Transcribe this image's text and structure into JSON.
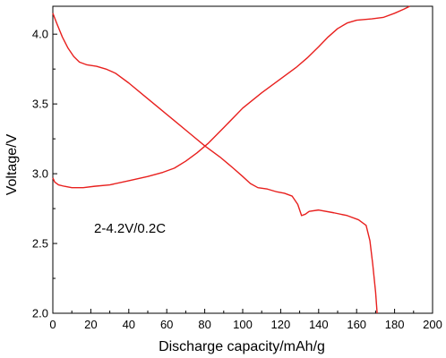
{
  "chart_data": {
    "type": "line",
    "title": "",
    "xlabel": "Discharge capacity/mAh/g",
    "ylabel": "Voltage/V",
    "xlim": [
      0,
      200
    ],
    "ylim": [
      2.0,
      4.2
    ],
    "xticks": [
      0,
      20,
      40,
      60,
      80,
      100,
      120,
      140,
      160,
      180,
      200
    ],
    "xtick_labels": [
      "0",
      "20",
      "40",
      "60",
      "80",
      "100",
      "120",
      "140",
      "160",
      "180",
      "200"
    ],
    "yticks": [
      2.0,
      2.5,
      3.0,
      3.5,
      4.0
    ],
    "ytick_labels": [
      "2.0",
      "2.5",
      "3.0",
      "3.5",
      "4.0"
    ],
    "grid": false,
    "line_color": "#e8201e",
    "annotation": "2-4.2V/0.2C",
    "series": [
      {
        "points": [
          [
            0,
            4.15
          ],
          [
            2,
            4.08
          ],
          [
            5,
            3.98
          ],
          [
            8,
            3.9
          ],
          [
            11,
            3.84
          ],
          [
            14,
            3.8
          ],
          [
            18,
            3.78
          ],
          [
            23,
            3.77
          ],
          [
            28,
            3.75
          ],
          [
            33,
            3.72
          ],
          [
            40,
            3.65
          ],
          [
            48,
            3.56
          ],
          [
            56,
            3.47
          ],
          [
            64,
            3.38
          ],
          [
            72,
            3.29
          ],
          [
            80,
            3.2
          ],
          [
            88,
            3.12
          ],
          [
            95,
            3.04
          ],
          [
            100,
            2.98
          ],
          [
            104,
            2.93
          ],
          [
            108,
            2.9
          ],
          [
            113,
            2.89
          ],
          [
            118,
            2.87
          ],
          [
            122,
            2.86
          ],
          [
            126,
            2.84
          ],
          [
            129,
            2.78
          ],
          [
            131,
            2.7
          ],
          [
            133,
            2.71
          ],
          [
            135,
            2.73
          ],
          [
            140,
            2.74
          ],
          [
            148,
            2.72
          ],
          [
            155,
            2.7
          ],
          [
            161,
            2.67
          ],
          [
            165,
            2.63
          ],
          [
            167,
            2.52
          ],
          [
            168.5,
            2.35
          ],
          [
            170,
            2.15
          ],
          [
            170.8,
            2.0
          ]
        ]
      },
      {
        "points": [
          [
            0,
            2.97
          ],
          [
            1,
            2.94
          ],
          [
            3,
            2.92
          ],
          [
            6,
            2.91
          ],
          [
            10,
            2.9
          ],
          [
            16,
            2.9
          ],
          [
            22,
            2.91
          ],
          [
            30,
            2.92
          ],
          [
            40,
            2.95
          ],
          [
            50,
            2.98
          ],
          [
            58,
            3.01
          ],
          [
            64,
            3.04
          ],
          [
            70,
            3.09
          ],
          [
            76,
            3.15
          ],
          [
            82,
            3.22
          ],
          [
            90,
            3.33
          ],
          [
            100,
            3.47
          ],
          [
            110,
            3.58
          ],
          [
            120,
            3.68
          ],
          [
            128,
            3.76
          ],
          [
            134,
            3.83
          ],
          [
            140,
            3.91
          ],
          [
            145,
            3.98
          ],
          [
            150,
            4.04
          ],
          [
            155,
            4.08
          ],
          [
            160,
            4.1
          ],
          [
            168,
            4.11
          ],
          [
            174,
            4.12
          ],
          [
            180,
            4.15
          ],
          [
            185,
            4.18
          ],
          [
            188,
            4.2
          ]
        ]
      }
    ]
  }
}
